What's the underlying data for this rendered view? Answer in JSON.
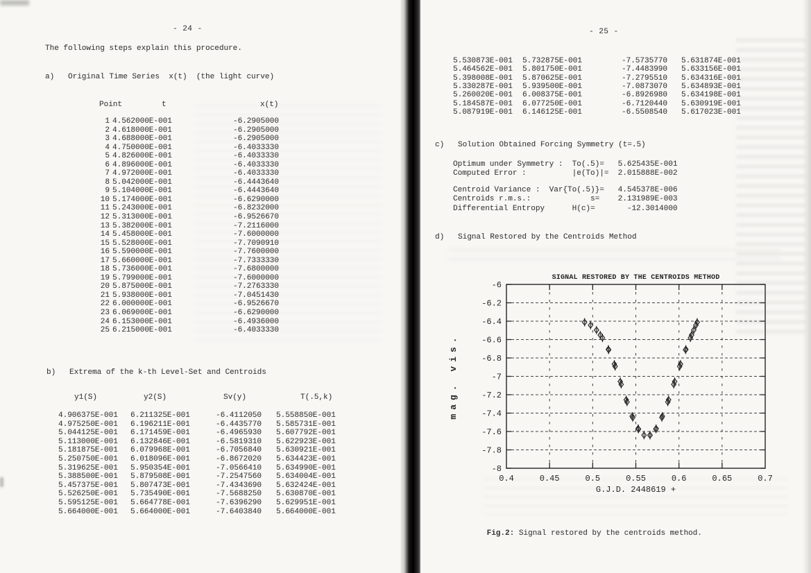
{
  "left_page": {
    "page_number": "- 24 -",
    "intro": "The following steps explain this procedure.",
    "section_a_title": "a)   Original Time Series  x(t)  (the light curve)",
    "table_a": {
      "headers": [
        "Point",
        "t",
        "x(t)"
      ],
      "rows": [
        [
          "1",
          "4.562000E-001",
          "-6.2905000"
        ],
        [
          "2",
          "4.618000E-001",
          "-6.2905000"
        ],
        [
          "3",
          "4.688000E-001",
          "-6.2905000"
        ],
        [
          "4",
          "4.750000E-001",
          "-6.4033330"
        ],
        [
          "5",
          "4.826000E-001",
          "-6.4033330"
        ],
        [
          "6",
          "4.896000E-001",
          "-6.4033330"
        ],
        [
          "7",
          "4.972000E-001",
          "-6.4033330"
        ],
        [
          "8",
          "5.042000E-001",
          "-6.4443640"
        ],
        [
          "9",
          "5.104000E-001",
          "-6.4443640"
        ],
        [
          "10",
          "5.174000E-001",
          "-6.6290000"
        ],
        [
          "11",
          "5.243000E-001",
          "-6.8232000"
        ],
        [
          "12",
          "5.313000E-001",
          "-6.9526670"
        ],
        [
          "13",
          "5.382000E-001",
          "-7.2116000"
        ],
        [
          "14",
          "5.458000E-001",
          "-7.6000000"
        ],
        [
          "15",
          "5.528000E-001",
          "-7.7090910"
        ],
        [
          "16",
          "5.590000E-001",
          "-7.7600000"
        ],
        [
          "17",
          "5.660000E-001",
          "-7.7333330"
        ],
        [
          "18",
          "5.736000E-001",
          "-7.6800000"
        ],
        [
          "19",
          "5.799000E-001",
          "-7.6000000"
        ],
        [
          "20",
          "5.875000E-001",
          "-7.2763330"
        ],
        [
          "21",
          "5.938000E-001",
          "-7.0451430"
        ],
        [
          "22",
          "6.000000E-001",
          "-6.9526670"
        ],
        [
          "23",
          "6.069000E-001",
          "-6.6290000"
        ],
        [
          "24",
          "6.153000E-001",
          "-6.4936000"
        ],
        [
          "25",
          "6.215000E-001",
          "-6.4033330"
        ]
      ]
    },
    "section_b_title": "b)   Extrema of the k-th Level-Set and Centroids",
    "table_b": {
      "headers": [
        "y1(S)",
        "y2(S)",
        "Sv(y)",
        "T(.5,k)"
      ],
      "rows": [
        [
          "4.906375E-001",
          "6.211325E-001",
          "-6.4112050",
          "5.558850E-001"
        ],
        [
          "4.975250E-001",
          "6.196211E-001",
          "-6.4435770",
          "5.585731E-001"
        ],
        [
          "5.044125E-001",
          "6.171459E-001",
          "-6.4965930",
          "5.607792E-001"
        ],
        [
          "5.113000E-001",
          "6.132846E-001",
          "-6.5819310",
          "5.622923E-001"
        ],
        [
          "5.181875E-001",
          "6.079968E-001",
          "-6.7056840",
          "5.630921E-001"
        ],
        [
          "5.250750E-001",
          "6.018096E-001",
          "-6.8672020",
          "5.634423E-001"
        ],
        [
          "5.319625E-001",
          "5.950354E-001",
          "-7.0566410",
          "5.634990E-001"
        ],
        [
          "5.388500E-001",
          "5.879508E-001",
          "-7.2547560",
          "5.634004E-001"
        ],
        [
          "5.457375E-001",
          "5.807473E-001",
          "-7.4343690",
          "5.632424E-001"
        ],
        [
          "5.526250E-001",
          "5.735490E-001",
          "-7.5688250",
          "5.630870E-001"
        ],
        [
          "5.595125E-001",
          "5.664778E-001",
          "-7.6396290",
          "5.629951E-001"
        ],
        [
          "5.664000E-001",
          "5.664000E-001",
          "-7.6403840",
          "5.664000E-001"
        ]
      ]
    }
  },
  "right_page": {
    "page_number": "- 25 -",
    "table_b_continued": {
      "rows": [
        [
          "5.530873E-001",
          "5.732875E-001",
          "-7.5735770",
          "5.631874E-001"
        ],
        [
          "5.464562E-001",
          "5.801750E-001",
          "-7.4483990",
          "5.633156E-001"
        ],
        [
          "5.398008E-001",
          "5.870625E-001",
          "-7.2795510",
          "5.634316E-001"
        ],
        [
          "5.330287E-001",
          "5.939500E-001",
          "-7.0873070",
          "5.634893E-001"
        ],
        [
          "5.260020E-001",
          "6.008375E-001",
          "-6.8926980",
          "5.634198E-001"
        ],
        [
          "5.184587E-001",
          "6.077250E-001",
          "-6.7120440",
          "5.630919E-001"
        ],
        [
          "5.087919E-001",
          "6.146125E-001",
          "-6.5508540",
          "5.617023E-001"
        ]
      ]
    },
    "section_c_title": "c)   Solution Obtained Forcing Symmetry (t=.5)",
    "stats_block_1": [
      "Optimum under Symmetry :  To(.5)=   5.625435E-001",
      "Computed Error :          |e(To)|=  2.015888E-002"
    ],
    "stats_block_2": [
      "Centroid Variance :  Var{To(.5)}=   4.545378E-006",
      "Centroids r.m.s.:             s=    2.131989E-003",
      "Differential Entropy      H(c)=       -12.3014000"
    ],
    "section_d_title": "d)   Signal Restored by the Centroids Method",
    "figure_caption_label": "Fig.2:",
    "figure_caption_text": " Signal restored by the centroids method."
  },
  "chart_data": {
    "type": "scatter",
    "title": "SIGNAL RESTORED BY THE CENTROIDS METHOD",
    "xlabel": "G.J.D. 2448619 +",
    "ylabel": "mag. vis.",
    "xlim": [
      0.4,
      0.7
    ],
    "ylim_top_to_bottom": [
      -6,
      -8
    ],
    "xticks": [
      "0.4",
      "0.45",
      "0.5",
      "0.55",
      "0.6",
      "0.65",
      "0.7"
    ],
    "yticks": [
      "-6",
      "-6.2",
      "-6.4",
      "-6.6",
      "-6.8",
      "-7",
      "-7.2",
      "-7.4",
      "-7.6",
      "-7.8",
      "-8"
    ],
    "grid": "dashed",
    "legend": "none",
    "marker": "diamond-with-error-bar",
    "points": [
      [
        0.4906375,
        -6.411205
      ],
      [
        0.6211325,
        -6.411205
      ],
      [
        0.497525,
        -6.443577
      ],
      [
        0.6196211,
        -6.443577
      ],
      [
        0.5044125,
        -6.496593
      ],
      [
        0.6171459,
        -6.496593
      ],
      [
        0.5087919,
        -6.550854
      ],
      [
        0.6146125,
        -6.550854
      ],
      [
        0.5113,
        -6.581931
      ],
      [
        0.6132846,
        -6.581931
      ],
      [
        0.5181875,
        -6.705684
      ],
      [
        0.6079968,
        -6.705684
      ],
      [
        0.5184587,
        -6.712044
      ],
      [
        0.607725,
        -6.712044
      ],
      [
        0.525075,
        -6.867202
      ],
      [
        0.6018096,
        -6.867202
      ],
      [
        0.526002,
        -6.892698
      ],
      [
        0.6008375,
        -6.892698
      ],
      [
        0.5319625,
        -7.056641
      ],
      [
        0.5950354,
        -7.056641
      ],
      [
        0.5330287,
        -7.087307
      ],
      [
        0.59395,
        -7.087307
      ],
      [
        0.53885,
        -7.254756
      ],
      [
        0.5879508,
        -7.254756
      ],
      [
        0.5398008,
        -7.279551
      ],
      [
        0.5870625,
        -7.279551
      ],
      [
        0.5457375,
        -7.434369
      ],
      [
        0.5807473,
        -7.434369
      ],
      [
        0.5464562,
        -7.448399
      ],
      [
        0.580175,
        -7.448399
      ],
      [
        0.552625,
        -7.568825
      ],
      [
        0.573549,
        -7.568825
      ],
      [
        0.5530873,
        -7.573577
      ],
      [
        0.5732875,
        -7.573577
      ],
      [
        0.5595125,
        -7.639629
      ],
      [
        0.5664778,
        -7.639629
      ],
      [
        0.5664,
        -7.640384
      ]
    ]
  },
  "colors": {
    "page_bg": "#f8f7f4",
    "ink": "#3a3a3a",
    "chart_ink": "#242424",
    "spine": "#000000"
  }
}
